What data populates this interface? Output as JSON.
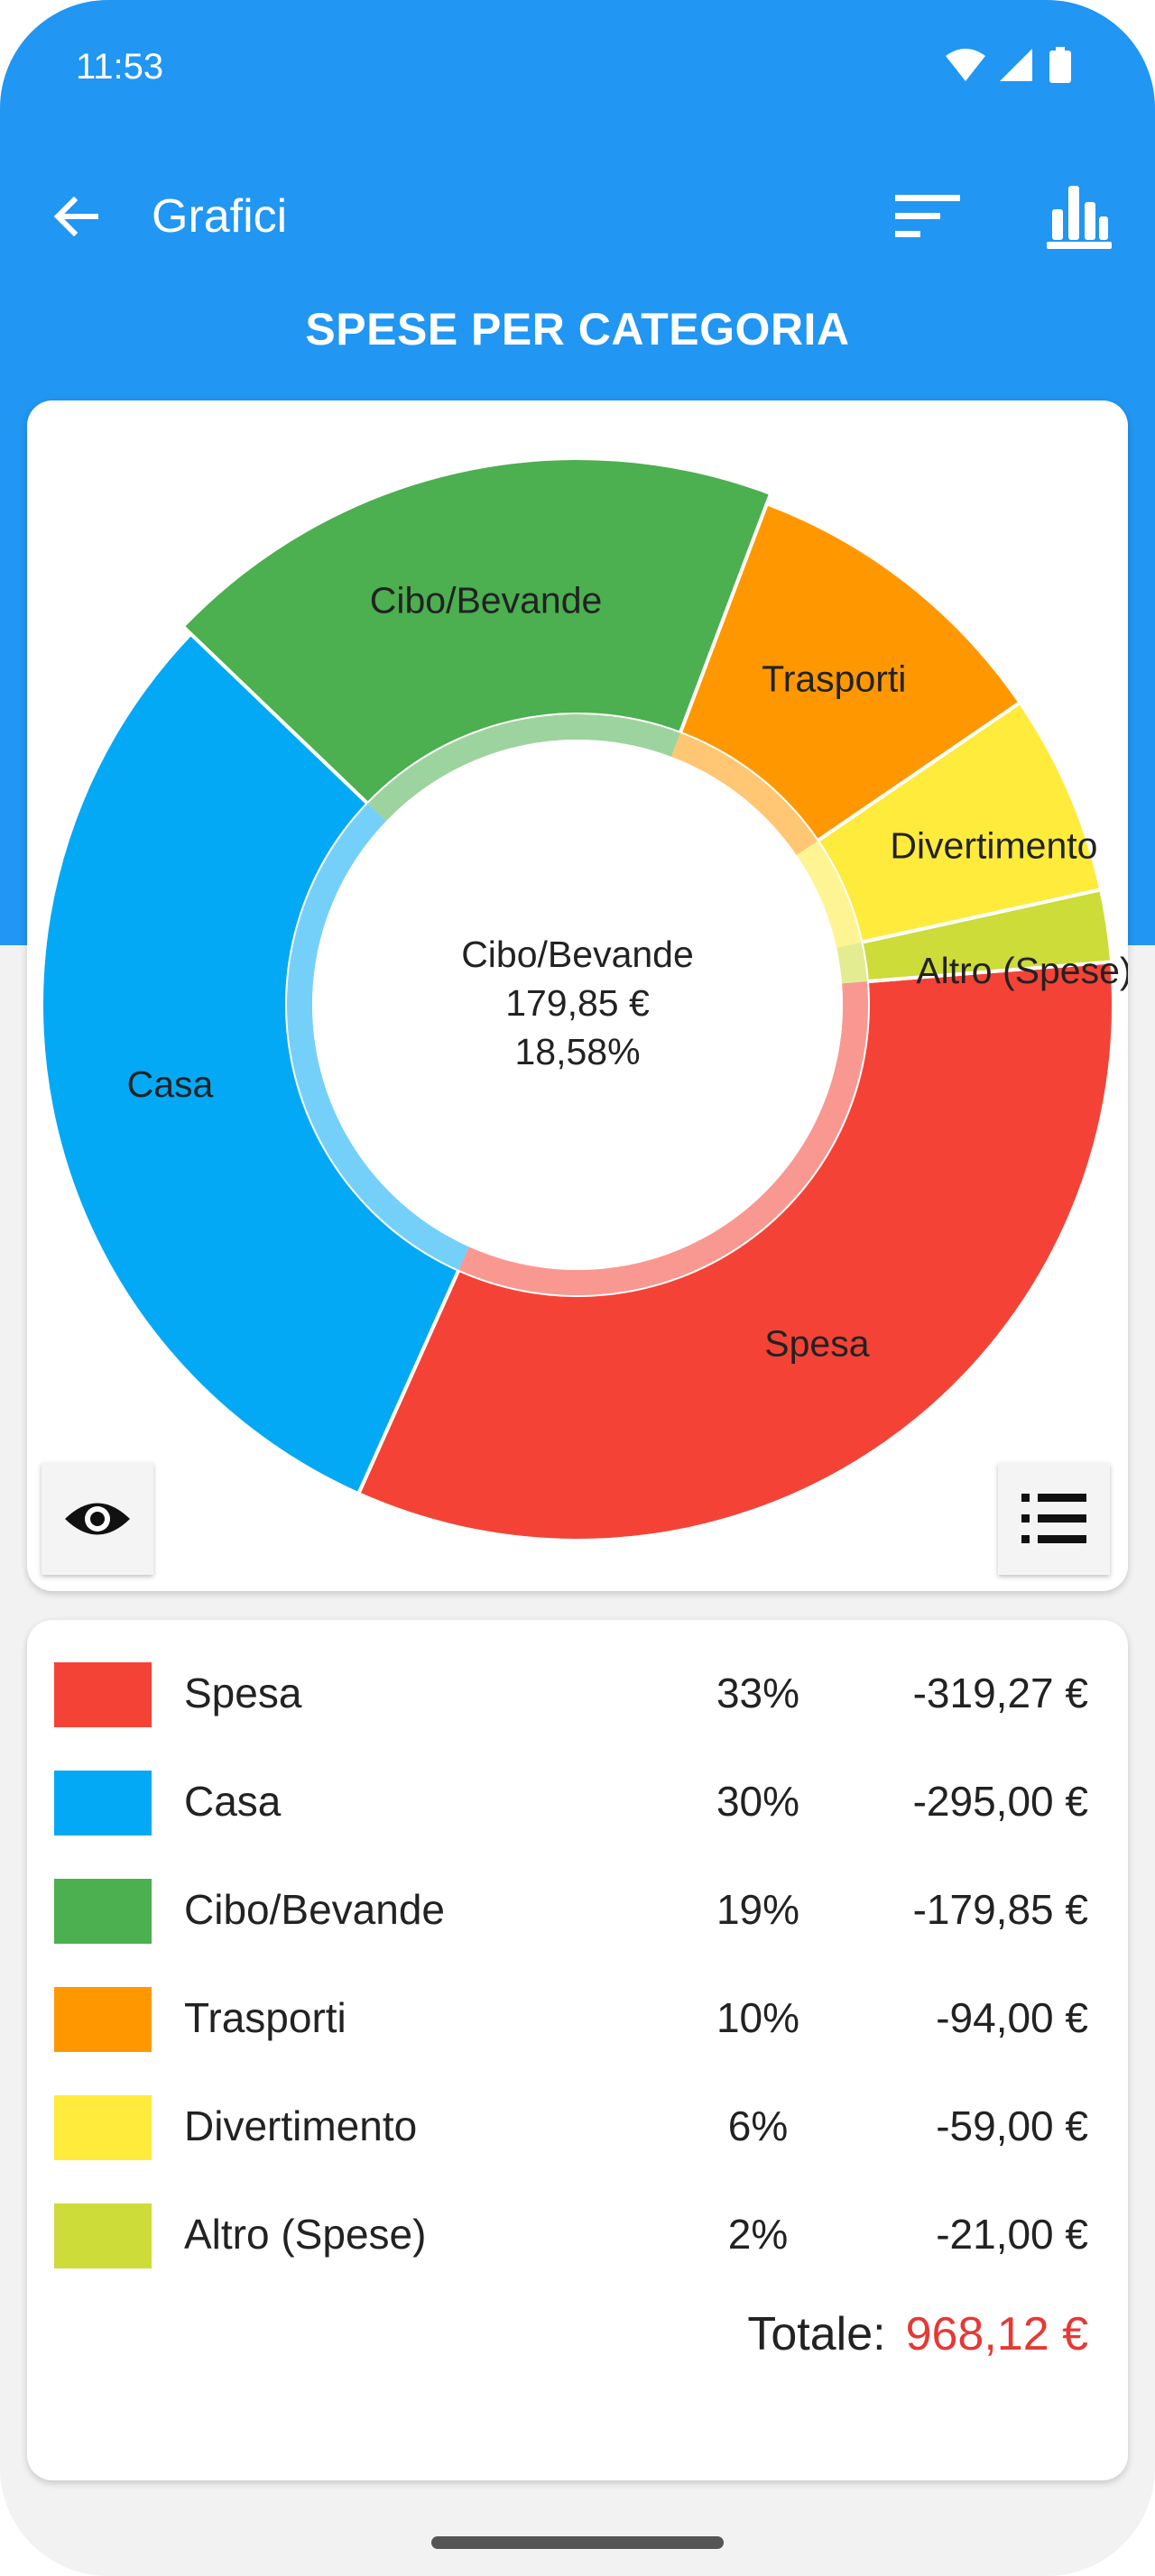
{
  "status_bar": {
    "time": "11:53",
    "icons": [
      "wifi-icon",
      "signal-icon",
      "battery-icon"
    ]
  },
  "app_bar": {
    "title": "Grafici",
    "back_icon": "arrow-left-icon",
    "actions": [
      "sort-icon",
      "bar-chart-icon"
    ]
  },
  "section_title": "SPESE PER CATEGORIA",
  "colors": {
    "primary": "#2196f3",
    "total": "#e53935"
  },
  "chart_data": {
    "type": "pie",
    "title": "SPESE PER CATEGORIA",
    "unit": "€",
    "slices": [
      {
        "name": "Spesa",
        "value": 319.27,
        "percent": 33,
        "color": "#f44336"
      },
      {
        "name": "Casa",
        "value": 295.0,
        "percent": 30,
        "color": "#03a9f4"
      },
      {
        "name": "Cibo/Bevande",
        "value": 179.85,
        "percent": 19,
        "color": "#4caf50",
        "selected": true
      },
      {
        "name": "Trasporti",
        "value": 94.0,
        "percent": 10,
        "color": "#ff9800"
      },
      {
        "name": "Divertimento",
        "value": 59.0,
        "percent": 6,
        "color": "#ffeb3b"
      },
      {
        "name": "Altro (Spese)",
        "value": 21.0,
        "percent": 2,
        "color": "#cddc39"
      }
    ],
    "center": {
      "label": "Cibo/Bevande",
      "amount": "179,85 €",
      "percent": "18,58%"
    }
  },
  "chart_controls": {
    "eye_icon": "eye-icon",
    "list_icon": "list-icon"
  },
  "legend": {
    "rows": [
      {
        "name": "Spesa",
        "percent": "33%",
        "amount": "-319,27 €",
        "color": "#f44336"
      },
      {
        "name": "Casa",
        "percent": "30%",
        "amount": "-295,00 €",
        "color": "#03a9f4"
      },
      {
        "name": "Cibo/Bevande",
        "percent": "19%",
        "amount": "-179,85 €",
        "color": "#4caf50"
      },
      {
        "name": "Trasporti",
        "percent": "10%",
        "amount": "-94,00 €",
        "color": "#ff9800"
      },
      {
        "name": "Divertimento",
        "percent": "6%",
        "amount": "-59,00 €",
        "color": "#ffeb3b"
      },
      {
        "name": "Altro (Spese)",
        "percent": "2%",
        "amount": "-21,00 €",
        "color": "#cddc39"
      }
    ],
    "total_label": "Totale:",
    "total_value": "968,12 €"
  }
}
